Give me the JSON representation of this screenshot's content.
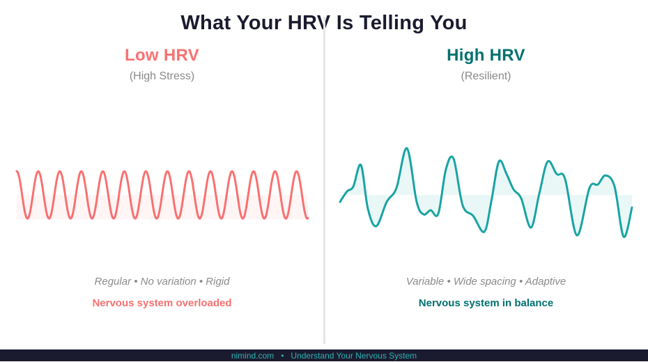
{
  "title": "What Your HRV Is Telling You",
  "colors": {
    "low_accent": "#f97070",
    "high_accent": "#18a3a3",
    "high_text": "#00706f",
    "footer_bg": "#1b1b2f",
    "footer_text": "#2bb3b3"
  },
  "low": {
    "heading": "Low HRV",
    "subheading": "(High Stress)",
    "descriptors": "Regular • No variation • Rigid",
    "verdict": "Nervous system overloaded"
  },
  "high": {
    "heading": "High HRV",
    "subheading": "(Resilient)",
    "descriptors": "Variable • Wide spacing • Adaptive",
    "verdict": "Nervous system in balance"
  },
  "footer": {
    "site": "nimind.com",
    "separator": "•",
    "tagline": "Understand Your Nervous System"
  }
}
